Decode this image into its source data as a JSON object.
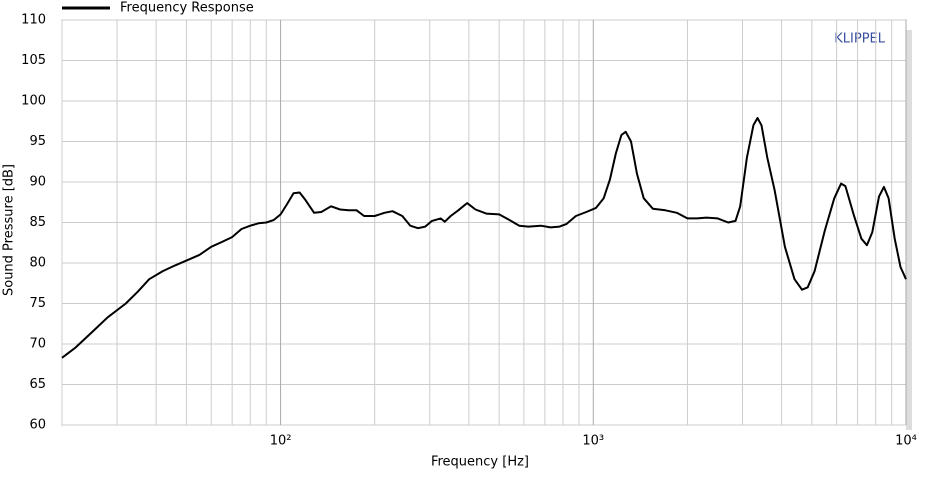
{
  "chart_data": {
    "type": "line",
    "brand": "KLIPPEL",
    "xlabel": "Frequency  [Hz]",
    "ylabel": "Sound Pressure  [dB]",
    "xscale": "log",
    "grid": true,
    "legend": "top-left",
    "x": [
      20,
      22,
      25,
      28,
      32,
      35,
      38,
      42,
      46,
      50,
      55,
      60,
      65,
      70,
      75,
      80,
      85,
      90,
      95,
      100,
      105,
      110,
      115,
      120,
      128,
      135,
      145,
      155,
      165,
      175,
      185,
      200,
      215,
      228,
      245,
      260,
      275,
      290,
      305,
      325,
      335,
      350,
      370,
      395,
      420,
      455,
      500,
      540,
      580,
      620,
      680,
      730,
      780,
      820,
      880,
      950,
      1020,
      1080,
      1130,
      1180,
      1230,
      1270,
      1320,
      1380,
      1450,
      1550,
      1700,
      1850,
      2000,
      2150,
      2300,
      2500,
      2700,
      2850,
      2950,
      3100,
      3250,
      3350,
      3450,
      3600,
      3800,
      4100,
      4400,
      4650,
      4850,
      5100,
      5500,
      5900,
      6200,
      6400,
      6800,
      7200,
      7500,
      7800,
      8200,
      8500,
      8800,
      9200,
      9600,
      10000
    ],
    "series": [
      {
        "name": "Frequency Response",
        "color": "#000000",
        "values": [
          68.3,
          69.5,
          71.5,
          73.3,
          75,
          76.5,
          78,
          79,
          79.7,
          80.3,
          81,
          82,
          82.6,
          83.2,
          84.2,
          84.6,
          84.9,
          85,
          85.3,
          86,
          87.3,
          88.6,
          88.7,
          87.8,
          86.2,
          86.3,
          87,
          86.6,
          86.5,
          86.5,
          85.8,
          85.8,
          86.2,
          86.4,
          85.8,
          84.6,
          84.3,
          84.5,
          85.2,
          85.5,
          85.1,
          85.8,
          86.5,
          87.4,
          86.6,
          86.1,
          86,
          85.3,
          84.6,
          84.5,
          84.6,
          84.4,
          84.5,
          84.8,
          85.8,
          86.3,
          86.8,
          88,
          90.3,
          93.5,
          95.8,
          96.2,
          95,
          91,
          88,
          86.7,
          86.5,
          86.2,
          85.5,
          85.5,
          85.6,
          85.5,
          85,
          85.2,
          87,
          93,
          97,
          97.9,
          97,
          93,
          89,
          82,
          78,
          76.7,
          77,
          79,
          84,
          88,
          89.8,
          89.5,
          86,
          83,
          82.2,
          83.8,
          88.2,
          89.4,
          88,
          83,
          79.5,
          78
        ]
      }
    ],
    "xlim": [
      20,
      10000
    ],
    "xticks": [
      {
        "value": 100,
        "label": "10²"
      },
      {
        "value": 1000,
        "label": "10³"
      },
      {
        "value": 10000,
        "label": "10⁴"
      }
    ],
    "xminorticks": [
      20,
      30,
      40,
      50,
      60,
      70,
      80,
      90,
      200,
      300,
      400,
      500,
      600,
      700,
      800,
      900,
      2000,
      3000,
      4000,
      5000,
      6000,
      7000,
      8000,
      9000
    ],
    "ylim": [
      60,
      110
    ],
    "yticks": [
      60,
      65,
      70,
      75,
      80,
      85,
      90,
      95,
      100,
      105,
      110
    ]
  }
}
